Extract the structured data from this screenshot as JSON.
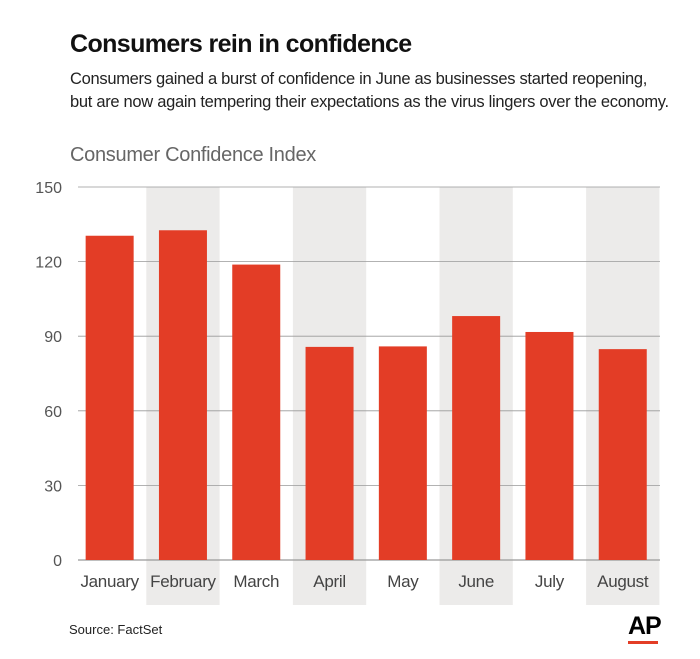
{
  "title": "Consumers rein in confidence",
  "subtitle": "Consumers gained a burst of confidence in June as businesses started reopening, but are now again tempering their expectations as the virus lingers over the economy.",
  "source": "Source: FactSet",
  "logo": "AP",
  "colors": {
    "bar": "#e33d26",
    "band": "#ecebea",
    "grid": "#999999"
  },
  "chart_data": {
    "type": "bar",
    "title": "Consumer Confidence Index",
    "categories": [
      "January",
      "February",
      "March",
      "April",
      "May",
      "June",
      "July",
      "August"
    ],
    "values": [
      130.4,
      132.6,
      118.8,
      85.7,
      85.9,
      98.1,
      91.7,
      84.8
    ],
    "ylim": [
      0,
      150
    ],
    "yticks": [
      0,
      30,
      60,
      90,
      120,
      150
    ],
    "shaded_categories": [
      "February",
      "April",
      "June",
      "August"
    ],
    "grid": true
  }
}
